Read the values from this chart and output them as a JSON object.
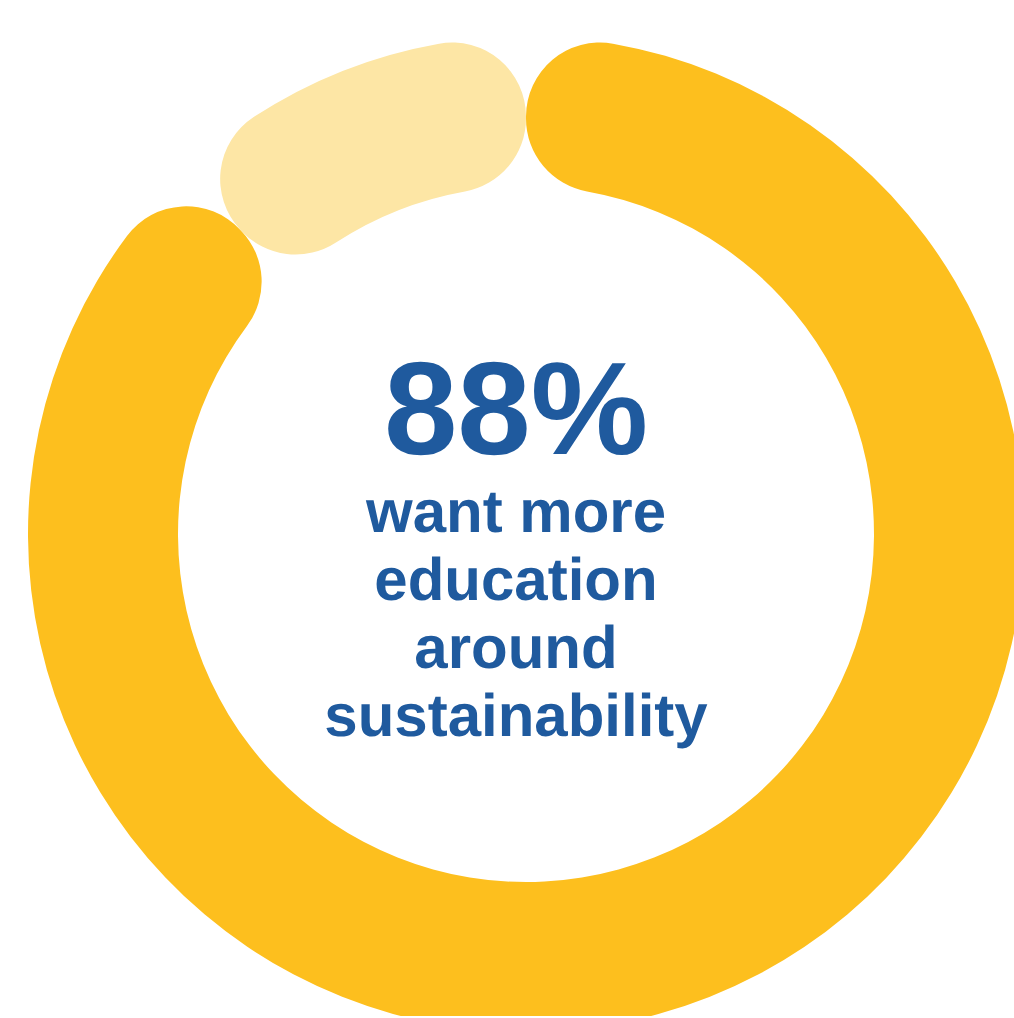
{
  "chart_data": {
    "type": "donut",
    "categories": [
      null,
      null
    ],
    "values": [
      88,
      12
    ],
    "colors": [
      "#fdbf1e",
      "#fde6a5"
    ],
    "value_labels": [
      "88%",
      null
    ],
    "annotations": [
      "want more education around sustainability"
    ]
  }
}
